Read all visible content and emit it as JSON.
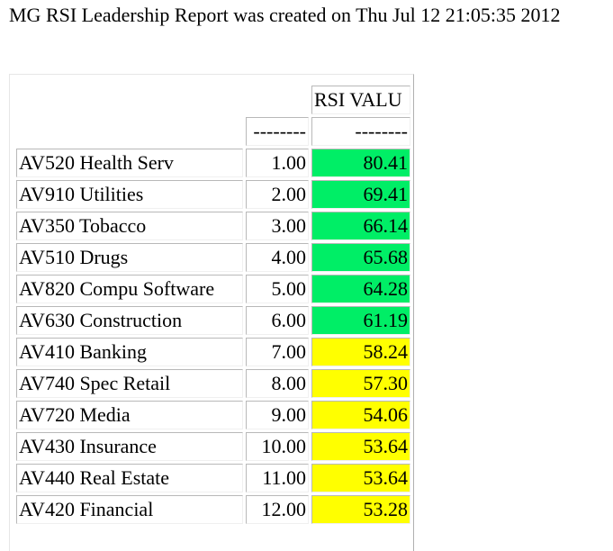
{
  "report": {
    "title": "MG RSI Leadership Report was created on Thu Jul 12 21:05:35 2012"
  },
  "colors": {
    "strong": "#00ee66",
    "moderate": "#ffff00"
  },
  "table": {
    "header_value": "RSI VALU",
    "dash_rank": "--------",
    "dash_value": "--------",
    "rows": [
      {
        "name": "AV520 Health Serv",
        "rank": "1.00",
        "value": "80.41",
        "level": "green"
      },
      {
        "name": "AV910 Utilities",
        "rank": "2.00",
        "value": "69.41",
        "level": "green"
      },
      {
        "name": "AV350 Tobacco",
        "rank": "3.00",
        "value": "66.14",
        "level": "green"
      },
      {
        "name": "AV510 Drugs",
        "rank": "4.00",
        "value": "65.68",
        "level": "green"
      },
      {
        "name": "AV820 Compu Software",
        "rank": "5.00",
        "value": "64.28",
        "level": "green"
      },
      {
        "name": "AV630 Construction",
        "rank": "6.00",
        "value": "61.19",
        "level": "green"
      },
      {
        "name": "AV410 Banking",
        "rank": "7.00",
        "value": "58.24",
        "level": "yellow"
      },
      {
        "name": "AV740 Spec Retail",
        "rank": "8.00",
        "value": "57.30",
        "level": "yellow"
      },
      {
        "name": "AV720 Media",
        "rank": "9.00",
        "value": "54.06",
        "level": "yellow"
      },
      {
        "name": "AV430 Insurance",
        "rank": "10.00",
        "value": "53.64",
        "level": "yellow"
      },
      {
        "name": "AV440 Real Estate",
        "rank": "11.00",
        "value": "53.64",
        "level": "yellow"
      },
      {
        "name": "AV420 Financial",
        "rank": "12.00",
        "value": "53.28",
        "level": "yellow"
      }
    ]
  }
}
